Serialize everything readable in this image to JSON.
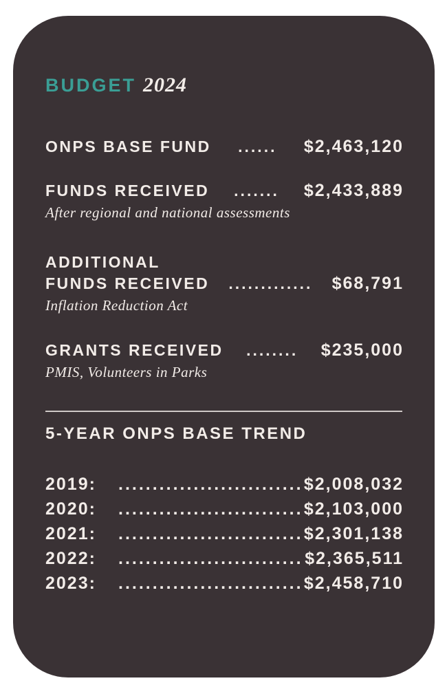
{
  "colors": {
    "page-bg": "#FFFFFF",
    "card-bg": "#3A3235",
    "accent-teal": "#3A9E95",
    "text-cream": "#F2ECE8",
    "divider": "#CFC9C7"
  },
  "card": {
    "title": {
      "word": "BUDGET",
      "year": "2024"
    },
    "budget_rows": [
      {
        "label": "ONPS BASE FUND",
        "dots": "......",
        "value": "$2,463,120"
      },
      {
        "label": "FUNDS RECEIVED",
        "dots": ".......",
        "value": "$2,433,889",
        "subtitle": "After regional and national assessments"
      },
      {
        "label_pre": "ADDITIONAL",
        "label": "FUNDS RECEIVED",
        "dots": ".............",
        "value": "$68,791",
        "subtitle": "Inflation Reduction Act"
      },
      {
        "label": "GRANTS RECEIVED",
        "dots": "........",
        "value": "$235,000",
        "subtitle": "PMIS, Volunteers in Parks"
      }
    ],
    "trend": {
      "heading": "5-YEAR ONPS BASE TREND",
      "rows": [
        {
          "year": "2019:",
          "dots": "...........................",
          "value": "$2,008,032"
        },
        {
          "year": "2020:",
          "dots": "...........................",
          "value": "$2,103,000"
        },
        {
          "year": "2021:",
          "dots": "...........................",
          "value": "$2,301,138"
        },
        {
          "year": "2022:",
          "dots": "...........................",
          "value": "$2,365,511"
        },
        {
          "year": "2023:",
          "dots": "...........................",
          "value": "$2,458,710"
        }
      ]
    }
  }
}
